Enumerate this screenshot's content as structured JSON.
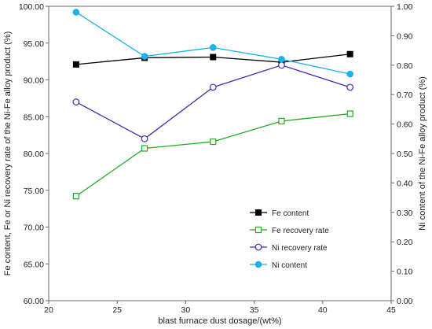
{
  "chart_data": {
    "type": "line",
    "xlabel": "blast furnace dust dosage/(wt%)",
    "ylabel_left": "Fe content, Fe or Ni recovery rate of the Ni-Fe alloy  product (%)",
    "ylabel_right": "Ni content of the Ni-Fe alloy product (%)",
    "xlim": [
      20,
      45
    ],
    "xticks": [
      20,
      25,
      30,
      35,
      40,
      45
    ],
    "ylim_left": [
      60,
      100
    ],
    "yticks_left": [
      "60.00",
      "65.00",
      "70.00",
      "75.00",
      "80.00",
      "85.00",
      "90.00",
      "95.00",
      "100.00"
    ],
    "ylim_right": [
      0,
      1
    ],
    "yticks_right": [
      "0.00",
      "0.10",
      "0.20",
      "0.30",
      "0.40",
      "0.50",
      "0.60",
      "0.70",
      "0.80",
      "0.90",
      "1.00"
    ],
    "grid": false,
    "legend_position": "lower-right inside",
    "x": [
      22,
      27,
      32,
      37,
      42
    ],
    "series": [
      {
        "name": "Fe content",
        "axis": "left",
        "color": "#000000",
        "marker": "filled-square",
        "values": [
          92.1,
          93.0,
          93.1,
          92.4,
          93.5
        ]
      },
      {
        "name": "Fe recovery rate",
        "axis": "left",
        "color": "#22aa22",
        "marker": "open-square",
        "values": [
          74.2,
          80.7,
          81.6,
          84.4,
          85.4
        ]
      },
      {
        "name": "Ni recovery rate",
        "axis": "left",
        "color": "#3a2fb0",
        "marker": "open-circle",
        "values": [
          87.0,
          82.0,
          89.0,
          92.0,
          89.0
        ]
      },
      {
        "name": "Ni content",
        "axis": "right",
        "color": "#1ab2e8",
        "marker": "filled-circle",
        "values": [
          0.98,
          0.83,
          0.86,
          0.82,
          0.77
        ]
      }
    ]
  }
}
